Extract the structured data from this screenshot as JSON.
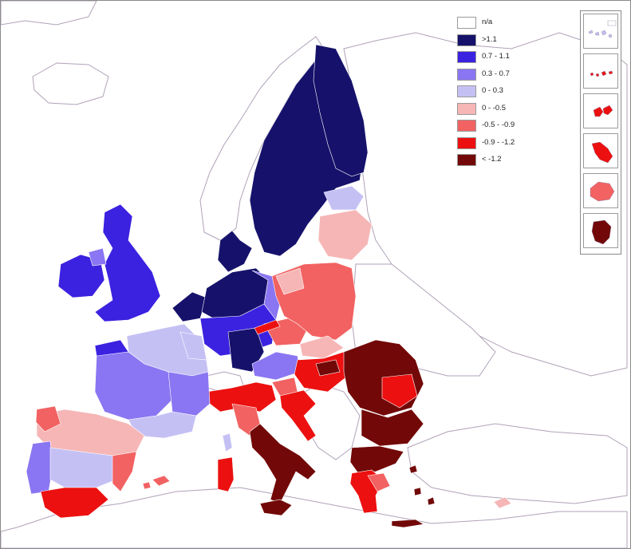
{
  "legend": {
    "items": [
      {
        "label": "n/a",
        "color": "#ffffff"
      },
      {
        "label": ">1.1",
        "color": "#16126b"
      },
      {
        "label": "0.7 - 1.1",
        "color": "#3b22e0"
      },
      {
        "label": "0.3 - 0.7",
        "color": "#8a76f2"
      },
      {
        "label": "0 - 0.3",
        "color": "#c5c0f4"
      },
      {
        "label": "0 -  -0.5",
        "color": "#f6b6b6"
      },
      {
        "label": "-0.5 -  -0.9",
        "color": "#f26262"
      },
      {
        "label": "-0.9 - -1.2",
        "color": "#ec1010"
      },
      {
        "label": "< -1.2",
        "color": "#720808"
      }
    ]
  },
  "colors": {
    "sea": "#ffffff",
    "border": "#b0a2b8",
    "region_border": "#ffffff",
    "frame": "#8a8a8a"
  },
  "insets": [
    {
      "name": "canary-islands",
      "class": "0 - 0.3"
    },
    {
      "name": "azores-madeira",
      "class": "-0.9 - -1.2"
    },
    {
      "name": "guadeloupe",
      "class": "-0.9 - -1.2"
    },
    {
      "name": "martinique",
      "class": "-0.9 - -1.2"
    },
    {
      "name": "reunion",
      "class": "-0.5 -  -0.9"
    },
    {
      "name": "french-guiana",
      "class": "< -1.2"
    }
  ]
}
